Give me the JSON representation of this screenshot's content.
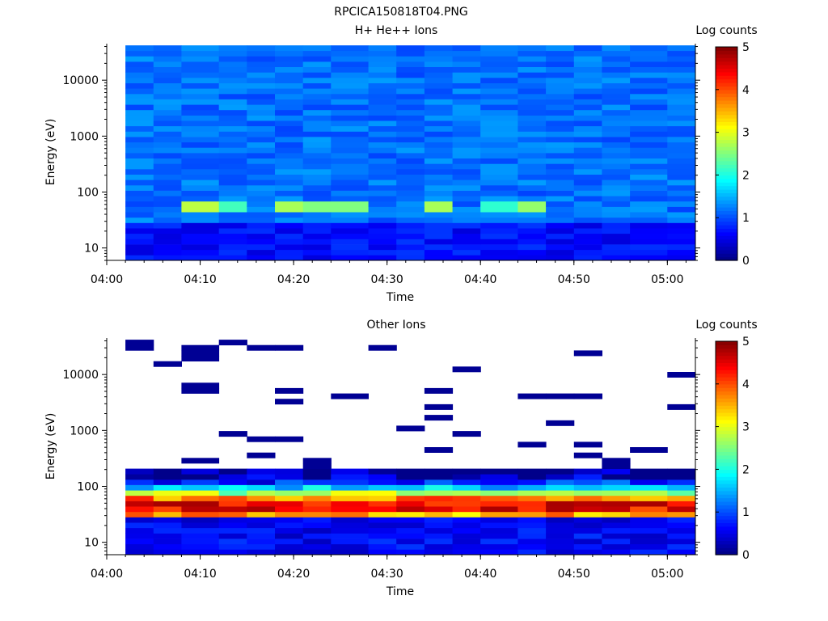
{
  "figure": {
    "title": "RPCICA150818T04.PNG"
  },
  "chart_data": [
    {
      "type": "heatmap",
      "title": "H+ He++ Ions",
      "xlabel": "Time",
      "ylabel": "Energy (eV)",
      "x_ticks": [
        "04:00",
        "04:10",
        "04:20",
        "04:30",
        "04:40",
        "04:50",
        "05:00"
      ],
      "y_ticks": [
        "10",
        "100",
        "1000",
        "10000"
      ],
      "y_scale": "log",
      "xlim": [
        "04:00",
        "05:03"
      ],
      "ylim": [
        6,
        45000
      ],
      "colorbar": {
        "label": "Log counts",
        "ticks": [
          "0",
          "1",
          "2",
          "3",
          "4",
          "5"
        ],
        "range": [
          0,
          5
        ]
      },
      "time_bins": [
        "04:02",
        "04:05",
        "04:08",
        "04:12",
        "04:15",
        "04:18",
        "04:21",
        "04:24",
        "04:28",
        "04:31",
        "04:34",
        "04:37",
        "04:40",
        "04:44",
        "04:47",
        "04:50",
        "04:53",
        "04:56",
        "05:00",
        "05:03"
      ],
      "profile": "uniform",
      "features": [
        {
          "time_index": 2,
          "energy": 55,
          "log_counts": 2.8
        },
        {
          "time_index": 3,
          "energy": 55,
          "log_counts": 2.2
        },
        {
          "time_index": 5,
          "energy": 55,
          "log_counts": 2.7
        },
        {
          "time_index": 6,
          "energy": 55,
          "log_counts": 2.5
        },
        {
          "time_index": 7,
          "energy": 55,
          "log_counts": 2.5
        },
        {
          "time_index": 10,
          "energy": 55,
          "log_counts": 2.7
        },
        {
          "time_index": 12,
          "energy": 55,
          "log_counts": 2.1
        },
        {
          "time_index": 13,
          "energy": 55,
          "log_counts": 2.6
        }
      ],
      "grid": false,
      "legend": "colorbar-right"
    },
    {
      "type": "heatmap",
      "title": "Other Ions",
      "xlabel": "Time",
      "ylabel": "Energy (eV)",
      "x_ticks": [
        "04:00",
        "04:10",
        "04:20",
        "04:30",
        "04:40",
        "04:50",
        "05:00"
      ],
      "y_ticks": [
        "10",
        "100",
        "1000",
        "10000"
      ],
      "y_scale": "log",
      "xlim": [
        "04:00",
        "05:03"
      ],
      "ylim": [
        6,
        45000
      ],
      "colorbar": {
        "label": "Log counts",
        "ticks": [
          "0",
          "1",
          "2",
          "3",
          "4",
          "5"
        ],
        "range": [
          0,
          5
        ]
      },
      "time_bins": [
        "04:02",
        "04:05",
        "04:08",
        "04:12",
        "04:15",
        "04:18",
        "04:21",
        "04:24",
        "04:28",
        "04:31",
        "04:34",
        "04:37",
        "04:40",
        "04:44",
        "04:47",
        "04:50",
        "04:53",
        "04:56",
        "05:00",
        "05:03"
      ],
      "profile": "peaked",
      "peak_energy_eV": 45,
      "peak_log_counts": 4.5,
      "sparse_above_eV": 200,
      "grid": false,
      "legend": "colorbar-right"
    }
  ]
}
